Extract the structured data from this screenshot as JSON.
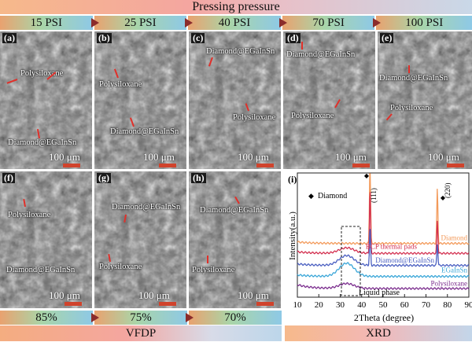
{
  "header": {
    "title": "Pressing pressure"
  },
  "pressures": [
    "15 PSI",
    "25 PSI",
    "40 PSI",
    "70 PSI",
    "100 PSI"
  ],
  "panels": [
    {
      "label": "(a)",
      "annotations": [
        "Polysiloxane",
        "Diamond@EGaInSn"
      ],
      "scale": "100 μm"
    },
    {
      "label": "(b)",
      "annotations": [
        "Polysiloxane",
        "Diamond@EGaInSn"
      ],
      "scale": "100 μm"
    },
    {
      "label": "(c)",
      "annotations": [
        "Diamond@EGaInSn",
        "Polysiloxane"
      ],
      "scale": "100 μm"
    },
    {
      "label": "(d)",
      "annotations": [
        "Diamond@EGaInSn",
        "Polysiloxane"
      ],
      "scale": "100 μm"
    },
    {
      "label": "(e)",
      "annotations": [
        "Diamond@EGaInSn",
        "Polysiloxane"
      ],
      "scale": "100 μm"
    },
    {
      "label": "(f)",
      "annotations": [
        "Polysiloxane",
        "Diamond@EGaInSn"
      ],
      "scale": "100 μm"
    },
    {
      "label": "(g)",
      "annotations": [
        "Diamond@EGaInSn",
        "Polysiloxane"
      ],
      "scale": "100 μm"
    },
    {
      "label": "(h)",
      "annotations": [
        "Diamond@EGaInSn",
        "Polysiloxane"
      ],
      "scale": "100 μm"
    }
  ],
  "vfdp": {
    "values": [
      "85%",
      "75%",
      "70%"
    ],
    "label": "VFDP"
  },
  "xrd": {
    "label": "XRD",
    "panel_label": "(i)",
    "legend_marker": "◆",
    "legend_text": "Diamond",
    "peak_111": "(111)",
    "peak_220": "(220)",
    "liquid_phase": "Liquid phase",
    "colors": {
      "diamond": "#f39a5a",
      "bcp": "#d32f4f",
      "diamond_egainsn": "#4a5fc1",
      "egainsn": "#3aa6d8",
      "polysiloxane": "#7b2d8e"
    }
  },
  "chart_data": {
    "type": "line",
    "title": "",
    "xlabel": "2Theta (degree)",
    "ylabel": "Intensity(a.u.)",
    "xlim": [
      10,
      90
    ],
    "x_ticks": [
      "10",
      "20",
      "30",
      "40",
      "50",
      "60",
      "70",
      "80",
      "90"
    ],
    "series": [
      {
        "name": "Diamond",
        "offset": 4.6,
        "peaks": [
          [
            43.9,
            8.5
          ],
          [
            75.3,
            5.0
          ]
        ],
        "hump": 0.0
      },
      {
        "name": "BCP thermal pads",
        "offset": 3.7,
        "peaks": [
          [
            43.9,
            6.0
          ],
          [
            75.3,
            3.0
          ]
        ],
        "hump": 0.5
      },
      {
        "name": "Diamond@EGaInSn",
        "offset": 2.6,
        "peaks": [
          [
            43.9,
            3.5
          ],
          [
            75.3,
            2.0
          ]
        ],
        "hump": 0.9
      },
      {
        "name": "EGaInSn",
        "offset": 1.6,
        "peaks": [],
        "hump": 1.2
      },
      {
        "name": "Polysiloxane",
        "offset": 0.5,
        "peaks": [],
        "hump": 0.45
      }
    ]
  }
}
